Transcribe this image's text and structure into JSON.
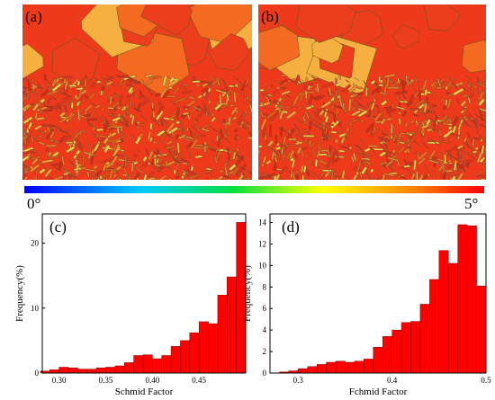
{
  "panels": {
    "a": "(a)",
    "b": "(b)"
  },
  "colorbar": {
    "min_label": "0°",
    "max_label": "5°"
  },
  "chart_data": [
    {
      "type": "histogram",
      "panel": "(c)",
      "x_label": "Schmid Factor",
      "y_label": "Frequency(%)",
      "color": "#ff0000",
      "bins": [
        0.28,
        0.29,
        0.3,
        0.31,
        0.32,
        0.33,
        0.34,
        0.35,
        0.36,
        0.37,
        0.38,
        0.39,
        0.4,
        0.41,
        0.42,
        0.43,
        0.44,
        0.45,
        0.46,
        0.47,
        0.48,
        0.49,
        0.5
      ],
      "counts": [
        0.3,
        0.5,
        0.9,
        0.8,
        0.6,
        0.6,
        0.8,
        0.9,
        1.1,
        1.6,
        2.7,
        2.8,
        2.2,
        2.7,
        4.1,
        5.0,
        6.2,
        7.9,
        7.6,
        12,
        14.8,
        23.2
      ],
      "xlim": [
        0.282,
        0.5
      ],
      "xticks": [
        {
          "value": 0.3,
          "label": "0.30"
        },
        {
          "value": 0.35,
          "label": "0.35"
        },
        {
          "value": 0.4,
          "label": "0.40"
        },
        {
          "value": 0.45,
          "label": "0.45"
        }
      ],
      "ylim": [
        0,
        24.5
      ],
      "yticks": [
        0,
        10,
        20
      ]
    },
    {
      "type": "histogram",
      "panel": "(d)",
      "x_label": "Fchmid Factor",
      "y_label": "Frequency(%)",
      "color": "#ff0000",
      "bins": [
        0.28,
        0.29,
        0.3,
        0.31,
        0.32,
        0.33,
        0.34,
        0.35,
        0.36,
        0.37,
        0.38,
        0.39,
        0.4,
        0.41,
        0.42,
        0.43,
        0.44,
        0.45,
        0.46,
        0.47,
        0.48,
        0.49,
        0.5
      ],
      "counts": [
        0.1,
        0.2,
        0.4,
        0.6,
        0.8,
        1.0,
        1.1,
        1.0,
        1.1,
        1.3,
        2.4,
        3.4,
        4.0,
        4.7,
        4.8,
        6.4,
        8.7,
        11.4,
        10.2,
        13.8,
        13.7,
        8.1
      ],
      "xlim": [
        0.27,
        0.5
      ],
      "xticks": [
        0.3,
        0.4,
        0.5
      ],
      "ylim": [
        0,
        14.8
      ],
      "yticks": [
        0,
        2,
        4,
        6,
        8,
        10,
        12,
        14
      ]
    }
  ]
}
